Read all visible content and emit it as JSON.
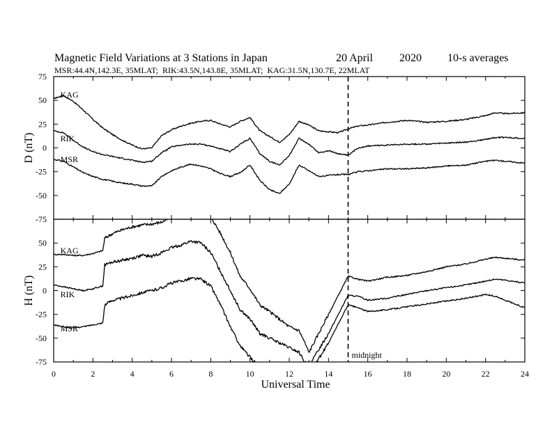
{
  "header": {
    "title_main": "Magnetic Field Variations at 3 Stations in Japan",
    "title_date": "20 April",
    "title_year": "2020",
    "title_avg": "10-s averages",
    "subtitle": "MSR:44.4N,142.3E, 35MLAT;  RIK:43.5N,143.8E, 35MLAT;  KAG:31.5N,130.7E, 22MLAT"
  },
  "annotation": {
    "midnight": "midnight"
  },
  "chart_data": [
    {
      "panel": "D",
      "type": "line",
      "ylabel": "D (nT)",
      "ylim": [
        -75,
        75
      ],
      "yticks": [
        75,
        50,
        25,
        0,
        -25,
        -50,
        -75
      ],
      "ytick_labels": [
        "75",
        "50",
        "25",
        "0",
        "-25",
        "-50",
        "-75"
      ],
      "xlim": [
        0,
        24
      ],
      "midnight_x": 15,
      "series": [
        {
          "name": "KAG",
          "label_at": [
            0.2,
            56
          ],
          "x": [
            0,
            0.5,
            1,
            1.5,
            2,
            2.5,
            3,
            3.5,
            4,
            4.5,
            5,
            5.5,
            6,
            6.5,
            7,
            7.5,
            8,
            8.5,
            9,
            9.5,
            10,
            10.5,
            11,
            11.5,
            12,
            12.5,
            13,
            13.5,
            14,
            14.5,
            15,
            15.5,
            16,
            17,
            18,
            19,
            20,
            21,
            22,
            22.5,
            23,
            24
          ],
          "y": [
            52,
            55,
            49,
            40,
            30,
            21,
            14,
            8,
            3,
            -1,
            0,
            13,
            19,
            23,
            26,
            28,
            29,
            25,
            22,
            28,
            32,
            18,
            12,
            6,
            14,
            28,
            24,
            18,
            17,
            16,
            20,
            23,
            24,
            27,
            29,
            27,
            28,
            30,
            34,
            37,
            36,
            37
          ]
        },
        {
          "name": "RIK",
          "label_at": [
            0.2,
            10
          ],
          "x": [
            0,
            0.5,
            1,
            1.5,
            2,
            2.5,
            3,
            3.5,
            4,
            4.5,
            5,
            5.5,
            6,
            6.5,
            7,
            7.5,
            8,
            8.5,
            9,
            9.5,
            10,
            10.5,
            11,
            11.5,
            12,
            12.5,
            13,
            13.5,
            14,
            14.5,
            15,
            15.5,
            16,
            17,
            18,
            19,
            20,
            21,
            22,
            22.5,
            23,
            24
          ],
          "y": [
            18,
            16,
            8,
            1,
            -4,
            -7,
            -9,
            -11,
            -13,
            -15,
            -14,
            -5,
            1,
            3,
            4,
            4,
            2,
            -1,
            -4,
            4,
            10,
            -6,
            -14,
            -18,
            -8,
            10,
            4,
            -5,
            -3,
            -6,
            -8,
            0,
            2,
            3,
            4,
            4,
            5,
            6,
            9,
            11,
            11,
            10
          ]
        },
        {
          "name": "MSR",
          "label_at": [
            0.2,
            -12
          ],
          "x": [
            0,
            0.5,
            1,
            1.5,
            2,
            2.5,
            3,
            3.5,
            4,
            4.5,
            5,
            5.5,
            6,
            6.5,
            7,
            7.5,
            8,
            8.5,
            9,
            9.5,
            10,
            10.5,
            11,
            11.5,
            12,
            12.5,
            13,
            13.5,
            14,
            14.5,
            15,
            15.5,
            16,
            17,
            18,
            19,
            20,
            21,
            22,
            22.5,
            23,
            24
          ],
          "y": [
            -12,
            -14,
            -20,
            -26,
            -30,
            -33,
            -35,
            -37,
            -38,
            -40,
            -40,
            -30,
            -24,
            -20,
            -17,
            -19,
            -22,
            -27,
            -30,
            -26,
            -18,
            -34,
            -44,
            -48,
            -38,
            -18,
            -24,
            -30,
            -29,
            -28,
            -28,
            -25,
            -24,
            -22,
            -22,
            -21,
            -19,
            -18,
            -14,
            -13,
            -14,
            -16
          ]
        }
      ]
    },
    {
      "panel": "H",
      "type": "line",
      "ylabel": "H (nT)",
      "ylim": [
        -75,
        75
      ],
      "yticks": [
        50,
        25,
        0,
        -25,
        -50,
        -75
      ],
      "ytick_labels": [
        "50",
        "25",
        "0",
        "-25",
        "-50",
        "-75"
      ],
      "xlim": [
        0,
        24
      ],
      "xticks": [
        0,
        2,
        4,
        6,
        8,
        10,
        12,
        14,
        16,
        18,
        20,
        22,
        24
      ],
      "xtick_labels": [
        "0",
        "2",
        "4",
        "6",
        "8",
        "10",
        "12",
        "14",
        "16",
        "18",
        "20",
        "22",
        "24"
      ],
      "xlabel": "Universal Time",
      "series": [
        {
          "name": "KAG",
          "label_at": [
            0.2,
            42
          ],
          "x": [
            0,
            0.5,
            1,
            1.5,
            2,
            2.5,
            2.6,
            3,
            3.5,
            4,
            4.5,
            5,
            5.5,
            6,
            6.5,
            7,
            7.5,
            8,
            8.5,
            9,
            9.5,
            10,
            10.5,
            11,
            11.5,
            12,
            12.5,
            12.8,
            13,
            13.5,
            14,
            14.5,
            15,
            15.5,
            16,
            17,
            18,
            19,
            20,
            21,
            22,
            22.5,
            23,
            24
          ],
          "y": [
            38,
            38,
            37,
            37,
            39,
            42,
            55,
            60,
            64,
            67,
            69,
            70,
            72,
            77,
            80,
            85,
            84,
            78,
            60,
            40,
            15,
            2,
            -15,
            -22,
            -30,
            -38,
            -42,
            -55,
            -65,
            -45,
            -25,
            -5,
            15,
            12,
            10,
            14,
            16,
            20,
            25,
            28,
            33,
            35,
            34,
            32
          ]
        },
        {
          "name": "RIK",
          "label_at": [
            0.2,
            -4
          ],
          "x": [
            0,
            0.5,
            1,
            1.5,
            2,
            2.5,
            2.6,
            3,
            3.5,
            4,
            4.5,
            5,
            5.5,
            6,
            6.5,
            7,
            7.5,
            8,
            8.5,
            9,
            9.5,
            10,
            10.5,
            11,
            11.5,
            12,
            12.5,
            12.8,
            13,
            13.5,
            14,
            14.5,
            15,
            15.5,
            16,
            17,
            18,
            19,
            20,
            21,
            22,
            22.5,
            23,
            24
          ],
          "y": [
            6,
            4,
            2,
            0,
            2,
            5,
            27,
            30,
            32,
            34,
            37,
            36,
            40,
            45,
            48,
            52,
            50,
            40,
            20,
            0,
            -20,
            -30,
            -45,
            -50,
            -55,
            -60,
            -65,
            -75,
            -80,
            -62,
            -45,
            -25,
            -5,
            -6,
            -10,
            -8,
            -4,
            0,
            3,
            6,
            10,
            12,
            11,
            8
          ]
        },
        {
          "name": "MSR",
          "label_at": [
            0.2,
            -40
          ],
          "x": [
            0,
            0.5,
            1,
            1.5,
            2,
            2.5,
            2.6,
            3,
            3.5,
            4,
            4.5,
            5,
            5.5,
            6,
            6.5,
            7,
            7.5,
            8,
            8.5,
            9,
            9.5,
            10,
            10.5,
            11,
            11.5,
            12,
            12.5,
            12.8,
            13,
            13.5,
            14,
            14.5,
            15,
            15.5,
            16,
            17,
            18,
            19,
            20,
            21,
            22,
            22.5,
            23,
            24
          ],
          "y": [
            -36,
            -38,
            -39,
            -38,
            -36,
            -34,
            -15,
            -10,
            -8,
            -5,
            -2,
            0,
            3,
            8,
            10,
            13,
            12,
            5,
            -15,
            -38,
            -58,
            -70,
            -80,
            -75,
            -82,
            -80,
            -86,
            -94,
            -90,
            -72,
            -55,
            -35,
            -15,
            -18,
            -22,
            -20,
            -17,
            -14,
            -11,
            -8,
            -4,
            -6,
            -10,
            -18
          ]
        }
      ]
    }
  ]
}
